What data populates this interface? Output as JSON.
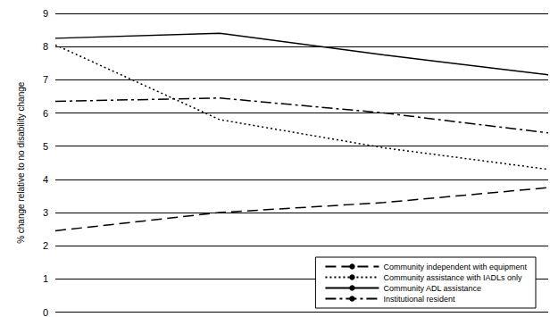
{
  "chart_data": {
    "type": "line",
    "y_label": "% change relative to no disability change",
    "categories": [
      null,
      null,
      null,
      null
    ],
    "series": [
      {
        "name": "Community independent with equipment",
        "color": "#000000",
        "line_style": "dashed",
        "values": [
          2.45,
          3.0,
          3.3,
          3.75
        ]
      },
      {
        "name": "Community assistance with IADLs only",
        "color": "#000000",
        "line_style": "dotted",
        "values": [
          8.05,
          5.8,
          4.95,
          4.3
        ]
      },
      {
        "name": "Community ADL assistance",
        "color": "#000000",
        "line_style": "solid",
        "values": [
          8.25,
          8.4,
          7.75,
          7.15
        ]
      },
      {
        "name": "Institutional resident",
        "color": "#000000",
        "line_style": "dashdot",
        "values": [
          6.35,
          6.45,
          6.0,
          5.4
        ]
      }
    ],
    "ylim": [
      0,
      9
    ],
    "yticks": [
      0,
      1,
      2,
      3,
      4,
      5,
      6,
      7,
      8,
      9
    ],
    "grid": true,
    "legend": "lower right",
    "tick_labels": "y"
  }
}
